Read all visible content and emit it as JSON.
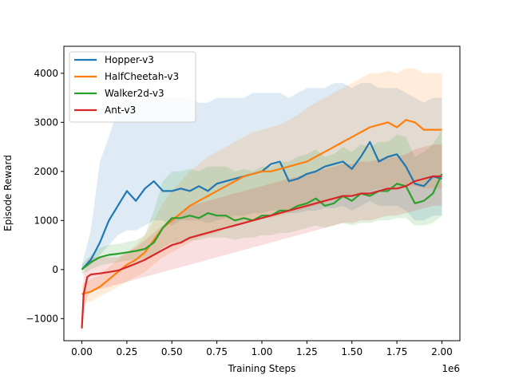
{
  "chart_data": {
    "type": "line",
    "xlabel": "Training Steps",
    "ylabel": "Episode Reward",
    "x_offset_label": "1e6",
    "xlim": [
      -0.1,
      2.1
    ],
    "ylim": [
      -1450,
      4550
    ],
    "x_ticks": [
      0.0,
      0.25,
      0.5,
      0.75,
      1.0,
      1.25,
      1.5,
      1.75,
      2.0
    ],
    "x_tick_labels": [
      "0.00",
      "0.25",
      "0.50",
      "0.75",
      "1.00",
      "1.25",
      "1.50",
      "1.75",
      "2.00"
    ],
    "y_ticks": [
      -1000,
      0,
      1000,
      2000,
      3000,
      4000
    ],
    "y_tick_labels": [
      "−1000",
      "0",
      "1000",
      "2000",
      "3000",
      "4000"
    ],
    "grid": false,
    "legend_position": "top-left",
    "series": [
      {
        "name": "Hopper-v3",
        "color": "#1f77b4",
        "x": [
          0.0,
          0.05,
          0.1,
          0.15,
          0.2,
          0.25,
          0.3,
          0.35,
          0.4,
          0.45,
          0.5,
          0.55,
          0.6,
          0.65,
          0.7,
          0.75,
          0.8,
          0.85,
          0.9,
          0.95,
          1.0,
          1.05,
          1.1,
          1.15,
          1.2,
          1.25,
          1.3,
          1.35,
          1.4,
          1.45,
          1.5,
          1.55,
          1.6,
          1.65,
          1.7,
          1.75,
          1.8,
          1.85,
          1.9,
          1.95,
          2.0
        ],
        "y": [
          0,
          200,
          550,
          1000,
          1300,
          1600,
          1400,
          1650,
          1800,
          1600,
          1600,
          1650,
          1600,
          1700,
          1600,
          1750,
          1800,
          1850,
          1900,
          1950,
          2000,
          2150,
          2200,
          1800,
          1850,
          1950,
          2000,
          2100,
          2150,
          2200,
          2050,
          2300,
          2600,
          2200,
          2300,
          2350,
          2100,
          1750,
          1700,
          1900,
          1850
        ],
        "band_low": [
          0,
          100,
          300,
          500,
          700,
          800,
          800,
          900,
          1000,
          1000,
          900,
          1000,
          1000,
          1000,
          950,
          1000,
          1050,
          1100,
          1100,
          1150,
          1150,
          1200,
          1200,
          1150,
          1150,
          1200,
          1200,
          1250,
          1250,
          1300,
          1200,
          1300,
          1400,
          1300,
          1300,
          1300,
          1200,
          1000,
          1000,
          1100,
          1100
        ],
        "band_high": [
          100,
          800,
          2200,
          2700,
          3300,
          3500,
          3400,
          3500,
          3500,
          3500,
          3500,
          3500,
          3500,
          3400,
          3400,
          3500,
          3500,
          3500,
          3500,
          3600,
          3600,
          3600,
          3600,
          3500,
          3600,
          3700,
          3700,
          3700,
          3800,
          3800,
          3700,
          3800,
          3800,
          3700,
          3700,
          3700,
          3600,
          3500,
          3400,
          3500,
          3500
        ]
      },
      {
        "name": "HalfCheetah-v3",
        "color": "#ff7f0e",
        "x": [
          0.0,
          0.05,
          0.1,
          0.15,
          0.2,
          0.25,
          0.3,
          0.35,
          0.4,
          0.45,
          0.5,
          0.55,
          0.6,
          0.65,
          0.7,
          0.75,
          0.8,
          0.85,
          0.9,
          0.95,
          1.0,
          1.05,
          1.1,
          1.15,
          1.2,
          1.25,
          1.3,
          1.35,
          1.4,
          1.45,
          1.5,
          1.55,
          1.6,
          1.65,
          1.7,
          1.75,
          1.8,
          1.85,
          1.9,
          1.95,
          2.0
        ],
        "y": [
          -500,
          -450,
          -350,
          -200,
          -50,
          100,
          200,
          350,
          600,
          850,
          1000,
          1150,
          1300,
          1400,
          1500,
          1600,
          1700,
          1800,
          1900,
          1950,
          2000,
          2000,
          2050,
          2100,
          2150,
          2200,
          2300,
          2400,
          2500,
          2600,
          2700,
          2800,
          2900,
          2950,
          3000,
          2900,
          3050,
          3000,
          2850,
          2850,
          2850
        ],
        "band_low": [
          -700,
          -650,
          -550,
          -450,
          -350,
          -250,
          -150,
          -50,
          100,
          250,
          350,
          450,
          550,
          650,
          700,
          750,
          850,
          900,
          950,
          1000,
          1050,
          1050,
          1100,
          1150,
          1200,
          1250,
          1300,
          1350,
          1400,
          1450,
          1500,
          1550,
          1600,
          1650,
          1650,
          1650,
          1700,
          1700,
          1650,
          1650,
          1650
        ],
        "band_high": [
          -300,
          -200,
          -100,
          50,
          200,
          350,
          500,
          700,
          1000,
          1350,
          1600,
          1800,
          2000,
          2150,
          2300,
          2400,
          2500,
          2600,
          2700,
          2800,
          2850,
          2900,
          2950,
          3050,
          3150,
          3300,
          3400,
          3500,
          3600,
          3700,
          3800,
          3900,
          4000,
          4000,
          4050,
          4000,
          4100,
          4100,
          4000,
          4000,
          4000
        ]
      },
      {
        "name": "Walker2d-v3",
        "color": "#2ca02c",
        "x": [
          0.0,
          0.05,
          0.1,
          0.15,
          0.2,
          0.25,
          0.3,
          0.35,
          0.4,
          0.45,
          0.5,
          0.55,
          0.6,
          0.65,
          0.7,
          0.75,
          0.8,
          0.85,
          0.9,
          0.95,
          1.0,
          1.05,
          1.1,
          1.15,
          1.2,
          1.25,
          1.3,
          1.35,
          1.4,
          1.45,
          1.5,
          1.55,
          1.6,
          1.65,
          1.7,
          1.75,
          1.8,
          1.85,
          1.9,
          1.95,
          2.0
        ],
        "y": [
          0,
          150,
          250,
          300,
          320,
          350,
          380,
          420,
          550,
          850,
          1050,
          1050,
          1100,
          1050,
          1150,
          1100,
          1100,
          1000,
          1050,
          1000,
          1100,
          1100,
          1200,
          1200,
          1300,
          1350,
          1450,
          1300,
          1350,
          1500,
          1400,
          1550,
          1500,
          1600,
          1600,
          1750,
          1700,
          1350,
          1400,
          1550,
          1950
        ],
        "band_low": [
          -100,
          0,
          80,
          120,
          150,
          180,
          200,
          230,
          300,
          450,
          550,
          550,
          600,
          600,
          650,
          650,
          650,
          600,
          650,
          650,
          700,
          700,
          750,
          750,
          800,
          850,
          900,
          850,
          900,
          950,
          900,
          950,
          950,
          1000,
          1000,
          1050,
          1050,
          900,
          900,
          950,
          1100
        ],
        "band_high": [
          100,
          300,
          450,
          500,
          520,
          560,
          600,
          700,
          1200,
          1800,
          2000,
          2000,
          2050,
          2000,
          2100,
          2100,
          2100,
          2000,
          2050,
          2000,
          2100,
          2100,
          2200,
          2200,
          2300,
          2350,
          2450,
          2300,
          2350,
          2500,
          2400,
          2550,
          2500,
          2600,
          2600,
          2750,
          2700,
          2300,
          2400,
          2550,
          2850
        ]
      },
      {
        "name": "Ant-v3",
        "color": "#d62728",
        "x": [
          0.0,
          0.01,
          0.03,
          0.05,
          0.1,
          0.15,
          0.2,
          0.25,
          0.3,
          0.35,
          0.4,
          0.45,
          0.5,
          0.55,
          0.6,
          0.65,
          0.7,
          0.75,
          0.8,
          0.85,
          0.9,
          0.95,
          1.0,
          1.05,
          1.1,
          1.15,
          1.2,
          1.25,
          1.3,
          1.35,
          1.4,
          1.45,
          1.5,
          1.55,
          1.6,
          1.65,
          1.7,
          1.75,
          1.8,
          1.85,
          1.9,
          1.95,
          2.0
        ],
        "y": [
          -1200,
          -500,
          -150,
          -100,
          -80,
          -50,
          -20,
          50,
          120,
          200,
          300,
          400,
          500,
          550,
          650,
          700,
          750,
          800,
          850,
          900,
          950,
          1000,
          1050,
          1100,
          1150,
          1200,
          1250,
          1300,
          1350,
          1400,
          1450,
          1500,
          1500,
          1550,
          1550,
          1600,
          1650,
          1650,
          1700,
          1800,
          1850,
          1900,
          1900
        ],
        "band_low": [
          -1300,
          -900,
          -550,
          -450,
          -400,
          -350,
          -300,
          -250,
          -200,
          -150,
          -100,
          -50,
          0,
          50,
          100,
          150,
          200,
          250,
          300,
          350,
          400,
          450,
          500,
          550,
          600,
          650,
          700,
          750,
          800,
          850,
          900,
          950,
          950,
          1000,
          1000,
          1050,
          1100,
          1100,
          1150,
          1200,
          1250,
          1300,
          1300
        ],
        "band_high": [
          -1100,
          -100,
          200,
          250,
          250,
          250,
          250,
          350,
          450,
          600,
          750,
          900,
          1050,
          1150,
          1300,
          1350,
          1400,
          1450,
          1500,
          1550,
          1600,
          1650,
          1700,
          1750,
          1800,
          1850,
          1900,
          1950,
          2000,
          2050,
          2100,
          2150,
          2150,
          2200,
          2200,
          2250,
          2300,
          2300,
          2350,
          2450,
          2500,
          2550,
          2550
        ]
      }
    ]
  }
}
